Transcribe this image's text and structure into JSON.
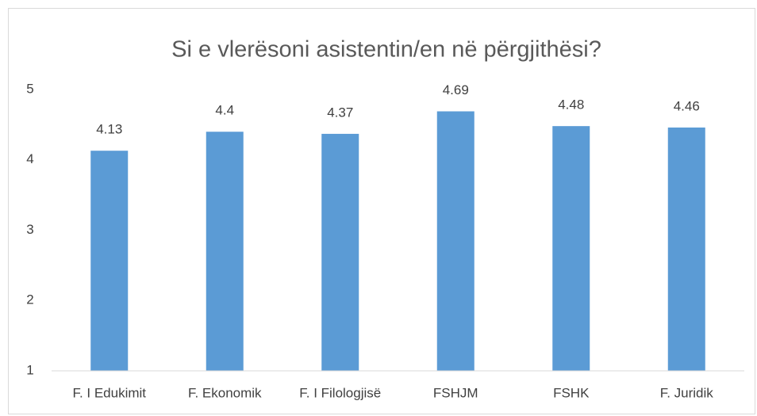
{
  "chart_data": {
    "type": "bar",
    "title": "Si e vlerësoni asistentin/en në përgjithësi?",
    "categories": [
      "F. I Edukimit",
      "F. Ekonomik",
      "F. I Filologjisë",
      "FSHJM",
      "FSHK",
      "F. Juridik"
    ],
    "values": [
      4.13,
      4.4,
      4.37,
      4.69,
      4.48,
      4.46
    ],
    "color": "#5b9bd5",
    "ylim": [
      1,
      5
    ],
    "yticks": [
      1,
      2,
      3,
      4,
      5
    ],
    "grid": false
  }
}
